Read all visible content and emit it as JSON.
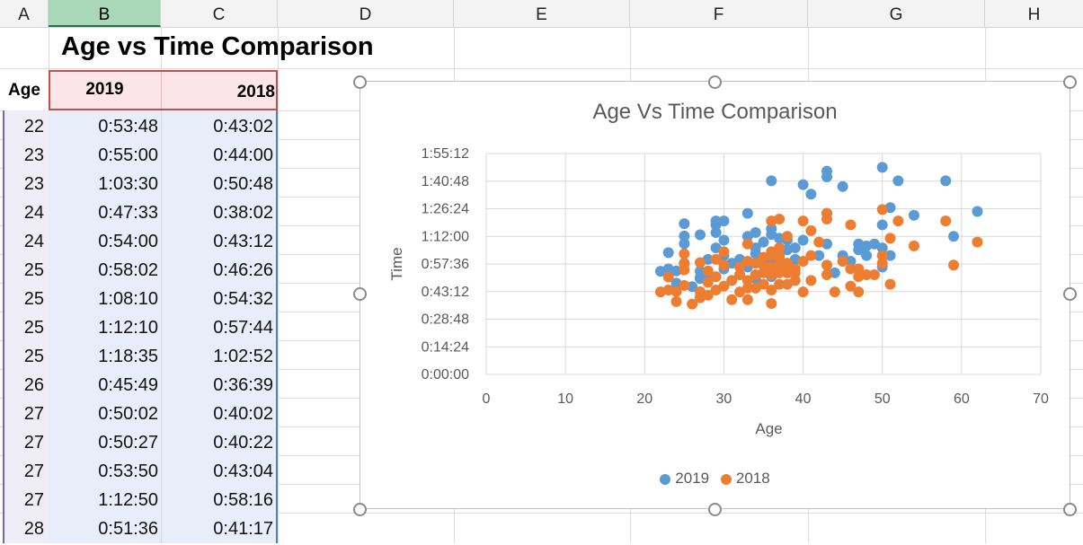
{
  "columns": [
    "A",
    "B",
    "C",
    "D",
    "E",
    "F",
    "G",
    "H"
  ],
  "sheet_title": "Age vs Time Comparison",
  "table": {
    "headers": {
      "age": "Age",
      "y2019": "2019",
      "y2018": "2018"
    },
    "rows": [
      {
        "age": "22",
        "t2019": "0:53:48",
        "t2018": "0:43:02"
      },
      {
        "age": "23",
        "t2019": "0:55:00",
        "t2018": "0:44:00"
      },
      {
        "age": "23",
        "t2019": "1:03:30",
        "t2018": "0:50:48"
      },
      {
        "age": "24",
        "t2019": "0:47:33",
        "t2018": "0:38:02"
      },
      {
        "age": "24",
        "t2019": "0:54:00",
        "t2018": "0:43:12"
      },
      {
        "age": "25",
        "t2019": "0:58:02",
        "t2018": "0:46:26"
      },
      {
        "age": "25",
        "t2019": "1:08:10",
        "t2018": "0:54:32"
      },
      {
        "age": "25",
        "t2019": "1:12:10",
        "t2018": "0:57:44"
      },
      {
        "age": "25",
        "t2019": "1:18:35",
        "t2018": "1:02:52"
      },
      {
        "age": "26",
        "t2019": "0:45:49",
        "t2018": "0:36:39"
      },
      {
        "age": "27",
        "t2019": "0:50:02",
        "t2018": "0:40:02"
      },
      {
        "age": "27",
        "t2019": "0:50:27",
        "t2018": "0:40:22"
      },
      {
        "age": "27",
        "t2019": "0:53:50",
        "t2018": "0:43:04"
      },
      {
        "age": "27",
        "t2019": "1:12:50",
        "t2018": "0:58:16"
      },
      {
        "age": "28",
        "t2019": "0:51:36",
        "t2018": "0:41:17"
      }
    ]
  },
  "colors": {
    "series2019": "#5b9bd5",
    "series2018": "#ed7d31",
    "header_fill": "#fbe5e8",
    "header_border": "#c0504d"
  },
  "chart_data": {
    "type": "scatter",
    "title": "Age Vs Time Comparison",
    "xlabel": "Age",
    "ylabel": "Time",
    "xlim": [
      0,
      70
    ],
    "ylim_minutes": [
      0,
      115.2
    ],
    "x_ticks": [
      "0",
      "10",
      "20",
      "30",
      "40",
      "50",
      "60",
      "70"
    ],
    "y_ticks": [
      "0:00:00",
      "0:14:24",
      "0:28:48",
      "0:43:12",
      "0:57:36",
      "1:12:00",
      "1:26:24",
      "1:40:48",
      "1:55:12"
    ],
    "grid": true,
    "legend_position": "bottom",
    "series": [
      {
        "name": "2019",
        "color": "#5b9bd5",
        "points": [
          [
            22,
            53.8
          ],
          [
            23,
            55
          ],
          [
            23,
            63.5
          ],
          [
            24,
            47.6
          ],
          [
            24,
            54
          ],
          [
            25,
            58
          ],
          [
            25,
            68.2
          ],
          [
            25,
            72.2
          ],
          [
            25,
            78.6
          ],
          [
            26,
            45.8
          ],
          [
            27,
            50
          ],
          [
            27,
            50.5
          ],
          [
            27,
            53.8
          ],
          [
            27,
            72.8
          ],
          [
            28,
            51.6
          ],
          [
            28,
            60
          ],
          [
            29,
            66
          ],
          [
            29,
            74
          ],
          [
            29,
            78
          ],
          [
            29,
            80
          ],
          [
            30,
            55
          ],
          [
            30,
            62
          ],
          [
            30,
            70
          ],
          [
            30,
            80
          ],
          [
            31,
            58
          ],
          [
            32,
            52
          ],
          [
            32,
            60
          ],
          [
            33,
            56
          ],
          [
            33,
            72
          ],
          [
            33,
            84
          ],
          [
            34,
            50
          ],
          [
            34,
            63
          ],
          [
            34,
            66
          ],
          [
            34,
            74
          ],
          [
            35,
            57
          ],
          [
            35,
            61
          ],
          [
            35,
            69
          ],
          [
            36,
            51
          ],
          [
            36,
            60
          ],
          [
            36,
            73
          ],
          [
            36,
            76
          ],
          [
            36,
            101
          ],
          [
            37,
            62
          ],
          [
            37,
            66
          ],
          [
            37,
            71
          ],
          [
            38,
            56
          ],
          [
            38,
            65
          ],
          [
            38,
            70
          ],
          [
            39,
            60
          ],
          [
            39,
            66
          ],
          [
            40,
            70
          ],
          [
            40,
            99
          ],
          [
            41,
            94
          ],
          [
            42,
            62
          ],
          [
            43,
            68
          ],
          [
            43,
            84
          ],
          [
            43,
            103
          ],
          [
            43,
            106
          ],
          [
            44,
            53
          ],
          [
            45,
            62
          ],
          [
            45,
            98
          ],
          [
            46,
            59
          ],
          [
            47,
            65
          ],
          [
            47,
            68
          ],
          [
            48,
            62
          ],
          [
            48,
            67
          ],
          [
            49,
            68
          ],
          [
            50,
            56
          ],
          [
            50,
            66
          ],
          [
            50,
            78
          ],
          [
            50,
            108
          ],
          [
            51,
            62
          ],
          [
            51,
            87
          ],
          [
            52,
            101
          ],
          [
            54,
            83
          ],
          [
            58,
            101
          ],
          [
            59,
            72
          ],
          [
            62,
            85
          ]
        ]
      },
      {
        "name": "2018",
        "color": "#ed7d31",
        "points": [
          [
            22,
            43
          ],
          [
            23,
            44
          ],
          [
            23,
            50.8
          ],
          [
            24,
            38
          ],
          [
            24,
            43.2
          ],
          [
            25,
            46.4
          ],
          [
            25,
            54.5
          ],
          [
            25,
            57.7
          ],
          [
            25,
            62.9
          ],
          [
            26,
            36.7
          ],
          [
            27,
            40
          ],
          [
            27,
            40.4
          ],
          [
            27,
            43.1
          ],
          [
            27,
            58.3
          ],
          [
            28,
            41.3
          ],
          [
            28,
            48
          ],
          [
            28,
            54
          ],
          [
            29,
            44
          ],
          [
            29,
            51
          ],
          [
            29,
            60
          ],
          [
            30,
            46
          ],
          [
            30,
            57
          ],
          [
            30,
            64
          ],
          [
            31,
            39
          ],
          [
            31,
            49
          ],
          [
            32,
            43
          ],
          [
            32,
            52
          ],
          [
            32,
            56
          ],
          [
            33,
            39
          ],
          [
            33,
            45
          ],
          [
            33,
            49
          ],
          [
            33,
            59
          ],
          [
            33,
            68
          ],
          [
            34,
            45
          ],
          [
            34,
            52
          ],
          [
            34,
            58
          ],
          [
            35,
            47
          ],
          [
            35,
            53
          ],
          [
            35,
            57
          ],
          [
            35,
            61
          ],
          [
            36,
            37
          ],
          [
            36,
            44
          ],
          [
            36,
            52
          ],
          [
            36,
            56
          ],
          [
            36,
            62
          ],
          [
            36,
            64
          ],
          [
            36,
            80
          ],
          [
            37,
            47
          ],
          [
            37,
            53
          ],
          [
            37,
            56
          ],
          [
            37,
            60
          ],
          [
            37,
            62
          ],
          [
            37,
            66
          ],
          [
            37,
            81
          ],
          [
            38,
            47
          ],
          [
            38,
            53
          ],
          [
            38,
            58
          ],
          [
            38,
            72
          ],
          [
            39,
            49
          ],
          [
            39,
            53
          ],
          [
            39,
            55
          ],
          [
            40,
            43
          ],
          [
            40,
            59
          ],
          [
            40,
            80
          ],
          [
            41,
            49
          ],
          [
            41,
            62
          ],
          [
            41,
            75
          ],
          [
            42,
            69
          ],
          [
            43,
            52
          ],
          [
            43,
            57
          ],
          [
            43,
            81
          ],
          [
            43,
            84
          ],
          [
            44,
            43
          ],
          [
            45,
            59
          ],
          [
            46,
            46
          ],
          [
            46,
            55
          ],
          [
            46,
            78
          ],
          [
            47,
            43
          ],
          [
            47,
            51
          ],
          [
            47,
            55
          ],
          [
            48,
            52
          ],
          [
            49,
            52
          ],
          [
            50,
            58
          ],
          [
            50,
            62
          ],
          [
            50,
            86
          ],
          [
            51,
            47
          ],
          [
            51,
            71
          ],
          [
            52,
            80
          ],
          [
            54,
            67
          ],
          [
            58,
            80
          ],
          [
            59,
            57
          ],
          [
            62,
            69
          ]
        ]
      }
    ]
  }
}
